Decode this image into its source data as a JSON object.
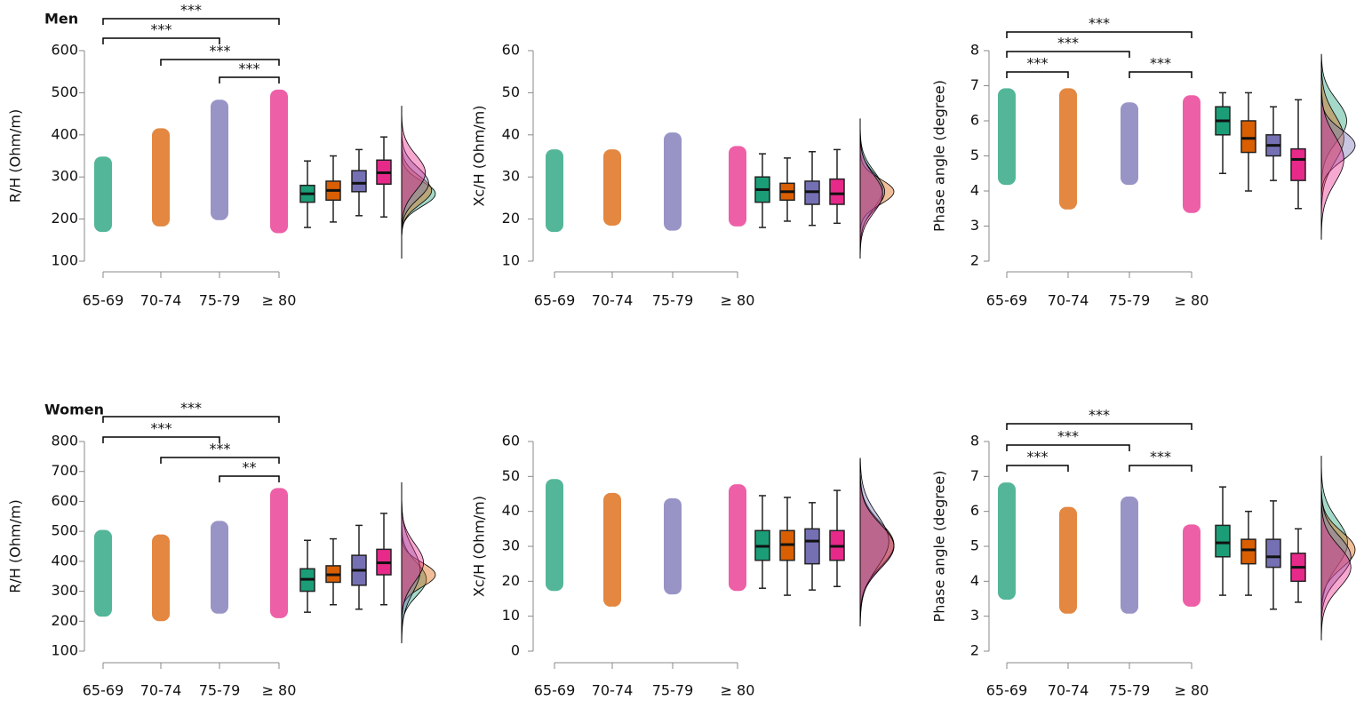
{
  "chart_data": [
    {
      "type": "raincloud",
      "title": "Men",
      "y_label": "R/H (Ohm/m)",
      "categories": [
        "65-69",
        "70-74",
        "75-79",
        "≥ 80"
      ],
      "colors": [
        "#1b9e77",
        "#d95f02",
        "#7570b3",
        "#e7298a"
      ],
      "ylim": [
        100,
        600
      ],
      "yticks": [
        100,
        200,
        300,
        400,
        500,
        600
      ],
      "ranges": [
        [
          180,
          338
        ],
        [
          193,
          405
        ],
        [
          208,
          473
        ],
        [
          177,
          497
        ]
      ],
      "boxes": [
        {
          "min": 180,
          "q1": 240,
          "median": 260,
          "q3": 280,
          "max": 338
        },
        {
          "min": 193,
          "q1": 245,
          "median": 268,
          "q3": 290,
          "max": 350
        },
        {
          "min": 208,
          "q1": 265,
          "median": 285,
          "q3": 315,
          "max": 365
        },
        {
          "min": 205,
          "q1": 283,
          "median": 310,
          "q3": 340,
          "max": 395
        }
      ],
      "brackets": [
        {
          "x": [
            0,
            3
          ],
          "label": "***"
        },
        {
          "x": [
            0,
            2
          ],
          "label": "***"
        },
        {
          "x": [
            1,
            3
          ],
          "label": "***"
        },
        {
          "x": [
            2,
            3
          ],
          "label": "***"
        }
      ]
    },
    {
      "type": "raincloud",
      "y_label": "Xc/H (Ohm/m)",
      "categories": [
        "65-69",
        "70-74",
        "75-79",
        "≥ 80"
      ],
      "colors": [
        "#1b9e77",
        "#d95f02",
        "#7570b3",
        "#e7298a"
      ],
      "ylim": [
        10,
        60
      ],
      "yticks": [
        10,
        20,
        30,
        40,
        50,
        60
      ],
      "ranges": [
        [
          18,
          35.5
        ],
        [
          19.5,
          35.5
        ],
        [
          18.3,
          39.5
        ],
        [
          19.3,
          36.3
        ]
      ],
      "boxes": [
        {
          "min": 18,
          "q1": 24,
          "median": 27,
          "q3": 30,
          "max": 35.5
        },
        {
          "min": 19.5,
          "q1": 24.5,
          "median": 26.5,
          "q3": 28.5,
          "max": 34.5
        },
        {
          "min": 18.5,
          "q1": 23.5,
          "median": 26.5,
          "q3": 29,
          "max": 36
        },
        {
          "min": 19,
          "q1": 23.5,
          "median": 26,
          "q3": 29.5,
          "max": 36.5
        }
      ],
      "brackets": []
    },
    {
      "type": "raincloud",
      "y_label": "Phase angle (degree)",
      "categories": [
        "65-69",
        "70-74",
        "75-79",
        "≥ 80"
      ],
      "colors": [
        "#1b9e77",
        "#d95f02",
        "#7570b3",
        "#e7298a"
      ],
      "ylim": [
        2,
        8
      ],
      "yticks": [
        2,
        3,
        4,
        5,
        6,
        7,
        8
      ],
      "ranges": [
        [
          4.3,
          6.8
        ],
        [
          3.6,
          6.8
        ],
        [
          4.3,
          6.4
        ],
        [
          3.5,
          6.6
        ]
      ],
      "boxes": [
        {
          "min": 4.5,
          "q1": 5.6,
          "median": 6.0,
          "q3": 6.4,
          "max": 6.8
        },
        {
          "min": 4.0,
          "q1": 5.1,
          "median": 5.5,
          "q3": 6.0,
          "max": 6.8
        },
        {
          "min": 4.3,
          "q1": 5.0,
          "median": 5.3,
          "q3": 5.6,
          "max": 6.4
        },
        {
          "min": 3.5,
          "q1": 4.3,
          "median": 4.9,
          "q3": 5.2,
          "max": 6.6
        }
      ],
      "brackets": [
        {
          "x": [
            0,
            3
          ],
          "label": "***"
        },
        {
          "x": [
            0,
            2
          ],
          "label": "***"
        },
        {
          "x": [
            0,
            1
          ],
          "label": "***"
        },
        {
          "x": [
            2,
            3
          ],
          "label": "***"
        }
      ]
    },
    {
      "type": "raincloud",
      "title": "Women",
      "y_label": "R/H (Ohm/m)",
      "categories": [
        "65-69",
        "70-74",
        "75-79",
        "≥ 80"
      ],
      "colors": [
        "#1b9e77",
        "#d95f02",
        "#7570b3",
        "#e7298a"
      ],
      "ylim": [
        100,
        800
      ],
      "yticks": [
        100,
        200,
        300,
        400,
        500,
        600,
        700,
        800
      ],
      "ranges": [
        [
          230,
          490
        ],
        [
          215,
          475
        ],
        [
          240,
          520
        ],
        [
          225,
          630
        ]
      ],
      "boxes": [
        {
          "min": 230,
          "q1": 300,
          "median": 340,
          "q3": 375,
          "max": 470
        },
        {
          "min": 255,
          "q1": 330,
          "median": 355,
          "q3": 385,
          "max": 475
        },
        {
          "min": 240,
          "q1": 320,
          "median": 370,
          "q3": 420,
          "max": 520
        },
        {
          "min": 255,
          "q1": 355,
          "median": 395,
          "q3": 440,
          "max": 560
        }
      ],
      "brackets": [
        {
          "x": [
            0,
            3
          ],
          "label": "***"
        },
        {
          "x": [
            0,
            2
          ],
          "label": "***"
        },
        {
          "x": [
            1,
            3
          ],
          "label": "***"
        },
        {
          "x": [
            2,
            3
          ],
          "label": "**"
        }
      ]
    },
    {
      "type": "raincloud",
      "y_label": "Xc/H (Ohm/m)",
      "categories": [
        "65-69",
        "70-74",
        "75-79",
        "≥ 80"
      ],
      "colors": [
        "#1b9e77",
        "#d95f02",
        "#7570b3",
        "#e7298a"
      ],
      "ylim": [
        0,
        60
      ],
      "yticks": [
        0,
        10,
        20,
        30,
        40,
        50,
        60
      ],
      "ranges": [
        [
          18.5,
          48
        ],
        [
          14,
          44
        ],
        [
          17.5,
          42.5
        ],
        [
          18.5,
          46.5
        ]
      ],
      "boxes": [
        {
          "min": 18,
          "q1": 26,
          "median": 30,
          "q3": 34.5,
          "max": 44.5
        },
        {
          "min": 16,
          "q1": 26,
          "median": 30.5,
          "q3": 34.5,
          "max": 44
        },
        {
          "min": 17.5,
          "q1": 25,
          "median": 31.5,
          "q3": 35,
          "max": 42.5
        },
        {
          "min": 18.5,
          "q1": 26,
          "median": 30,
          "q3": 34.5,
          "max": 46
        }
      ],
      "brackets": []
    },
    {
      "type": "raincloud",
      "y_label": "Phase angle (degree)",
      "categories": [
        "65-69",
        "70-74",
        "75-79",
        "≥ 80"
      ],
      "colors": [
        "#1b9e77",
        "#d95f02",
        "#7570b3",
        "#e7298a"
      ],
      "ylim": [
        2,
        8
      ],
      "yticks": [
        2,
        3,
        4,
        5,
        6,
        7,
        8
      ],
      "ranges": [
        [
          3.6,
          6.7
        ],
        [
          3.2,
          6.0
        ],
        [
          3.2,
          6.3
        ],
        [
          3.4,
          5.5
        ]
      ],
      "boxes": [
        {
          "min": 3.6,
          "q1": 4.7,
          "median": 5.1,
          "q3": 5.6,
          "max": 6.7
        },
        {
          "min": 3.6,
          "q1": 4.5,
          "median": 4.9,
          "q3": 5.2,
          "max": 6.0
        },
        {
          "min": 3.2,
          "q1": 4.4,
          "median": 4.7,
          "q3": 5.2,
          "max": 6.3
        },
        {
          "min": 3.4,
          "q1": 4.0,
          "median": 4.4,
          "q3": 4.8,
          "max": 5.5
        }
      ],
      "brackets": [
        {
          "x": [
            0,
            3
          ],
          "label": "***"
        },
        {
          "x": [
            0,
            2
          ],
          "label": "***"
        },
        {
          "x": [
            0,
            1
          ],
          "label": "***"
        },
        {
          "x": [
            2,
            3
          ],
          "label": "***"
        }
      ]
    }
  ]
}
